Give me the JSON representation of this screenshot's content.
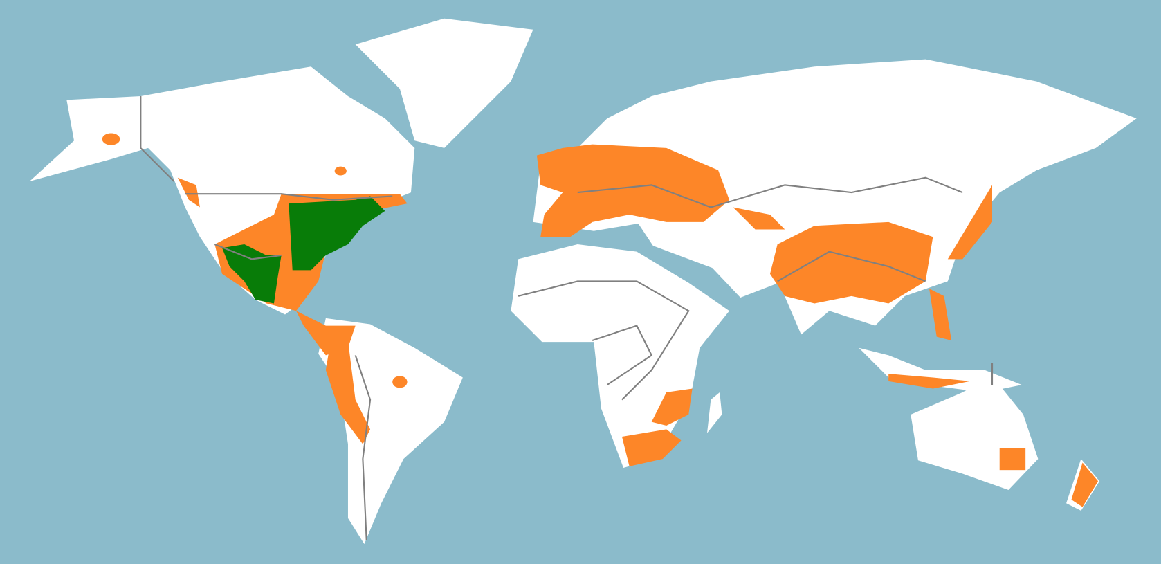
{
  "map": {
    "colors": {
      "ocean": "#8bbbcb",
      "land": "#ffffff",
      "borders": "#808080",
      "range_secondary": "#fd8628",
      "range_primary": "#087c08"
    }
  }
}
